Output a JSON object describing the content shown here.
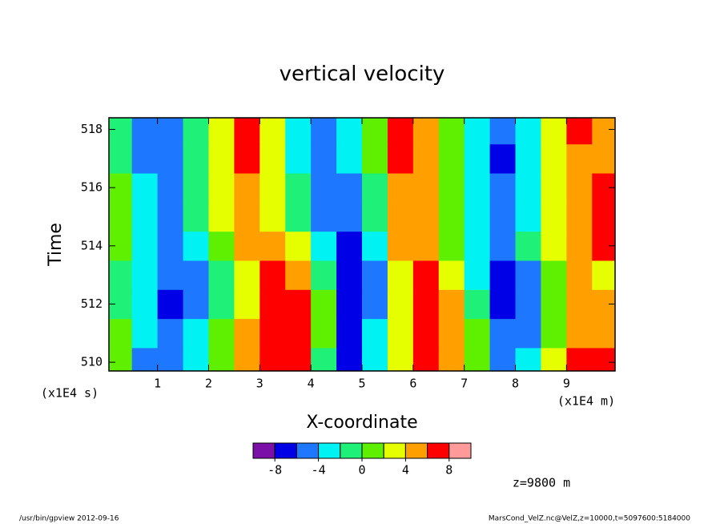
{
  "chart_data": {
    "type": "contour",
    "title": "vertical velocity",
    "xlabel": "X-coordinate",
    "ylabel": "Time",
    "x_unit": "(x1E4 m)",
    "y_unit": "(x1E4 s)",
    "annotation": "z=9800 m",
    "footer_left": "/usr/bin/gpview  2012-09-16",
    "footer_right": "MarsCond_VelZ.nc@VelZ,z=10000,t=5097600:5184000",
    "xlim": [
      0.05,
      9.95
    ],
    "ylim": [
      509.7,
      518.4
    ],
    "xticks": [
      1,
      2,
      3,
      4,
      5,
      6,
      7,
      8,
      9
    ],
    "yticks": [
      510,
      512,
      514,
      516,
      518
    ],
    "x": [
      0.25,
      0.75,
      1.25,
      1.75,
      2.25,
      2.75,
      3.25,
      3.75,
      4.25,
      4.75,
      5.25,
      5.75,
      6.25,
      6.75,
      7.25,
      7.75,
      8.25,
      8.75,
      9.25,
      9.75
    ],
    "y": [
      510,
      511,
      512,
      513,
      514,
      515,
      516,
      517,
      518
    ],
    "z": [
      [
        1,
        -5,
        -6,
        -3,
        1,
        5,
        7,
        6,
        -1,
        -7,
        -3,
        3,
        7,
        5,
        0,
        -5,
        -3,
        3,
        7,
        6
      ],
      [
        1,
        -4,
        -6,
        -3,
        1,
        4,
        7,
        7,
        0,
        -7,
        -3,
        3,
        7,
        5,
        0,
        -5,
        -5,
        1,
        5,
        5
      ],
      [
        -1,
        -3,
        -7,
        -5,
        -1,
        3,
        7,
        7,
        1,
        -7,
        -5,
        3,
        7,
        5,
        -1,
        -7,
        -5,
        1,
        5,
        5
      ],
      [
        -1,
        -3,
        -6,
        -5,
        -1,
        3,
        7,
        5,
        -1,
        -7,
        -5,
        3,
        7,
        3,
        -3,
        -7,
        -5,
        1,
        5,
        3
      ],
      [
        1,
        -3,
        -5,
        -3,
        1,
        5,
        5,
        3,
        -3,
        -7,
        -3,
        5,
        5,
        1,
        -3,
        -5,
        -1,
        3,
        5,
        7
      ],
      [
        1,
        -3,
        -5,
        -1,
        3,
        5,
        3,
        -1,
        -5,
        -5,
        -1,
        5,
        5,
        1,
        -3,
        -5,
        -3,
        3,
        5,
        7
      ],
      [
        1,
        -3,
        -5,
        -1,
        3,
        5,
        3,
        -1,
        -5,
        -5,
        -1,
        5,
        5,
        1,
        -3,
        -5,
        -3,
        3,
        5,
        7
      ],
      [
        -1,
        -5,
        -5,
        -1,
        3,
        7,
        3,
        -3,
        -5,
        -3,
        1,
        7,
        5,
        1,
        -3,
        -7,
        -3,
        3,
        5,
        5
      ],
      [
        -1,
        -5,
        -5,
        -1,
        3,
        7,
        3,
        -3,
        -5,
        -3,
        1,
        7,
        5,
        1,
        -3,
        -5,
        -3,
        3,
        7,
        5
      ]
    ],
    "levels": [
      -10,
      -8,
      -6,
      -4,
      -2,
      0,
      2,
      4,
      6,
      8,
      10
    ],
    "colors": [
      "#7a10a8",
      "#0000e6",
      "#1e78ff",
      "#00f2f2",
      "#1ef078",
      "#5ef000",
      "#e6ff00",
      "#ffa000",
      "#ff0000",
      "#ff9a9a"
    ],
    "colorbar_ticks": [
      -8,
      -4,
      0,
      4,
      8
    ]
  }
}
